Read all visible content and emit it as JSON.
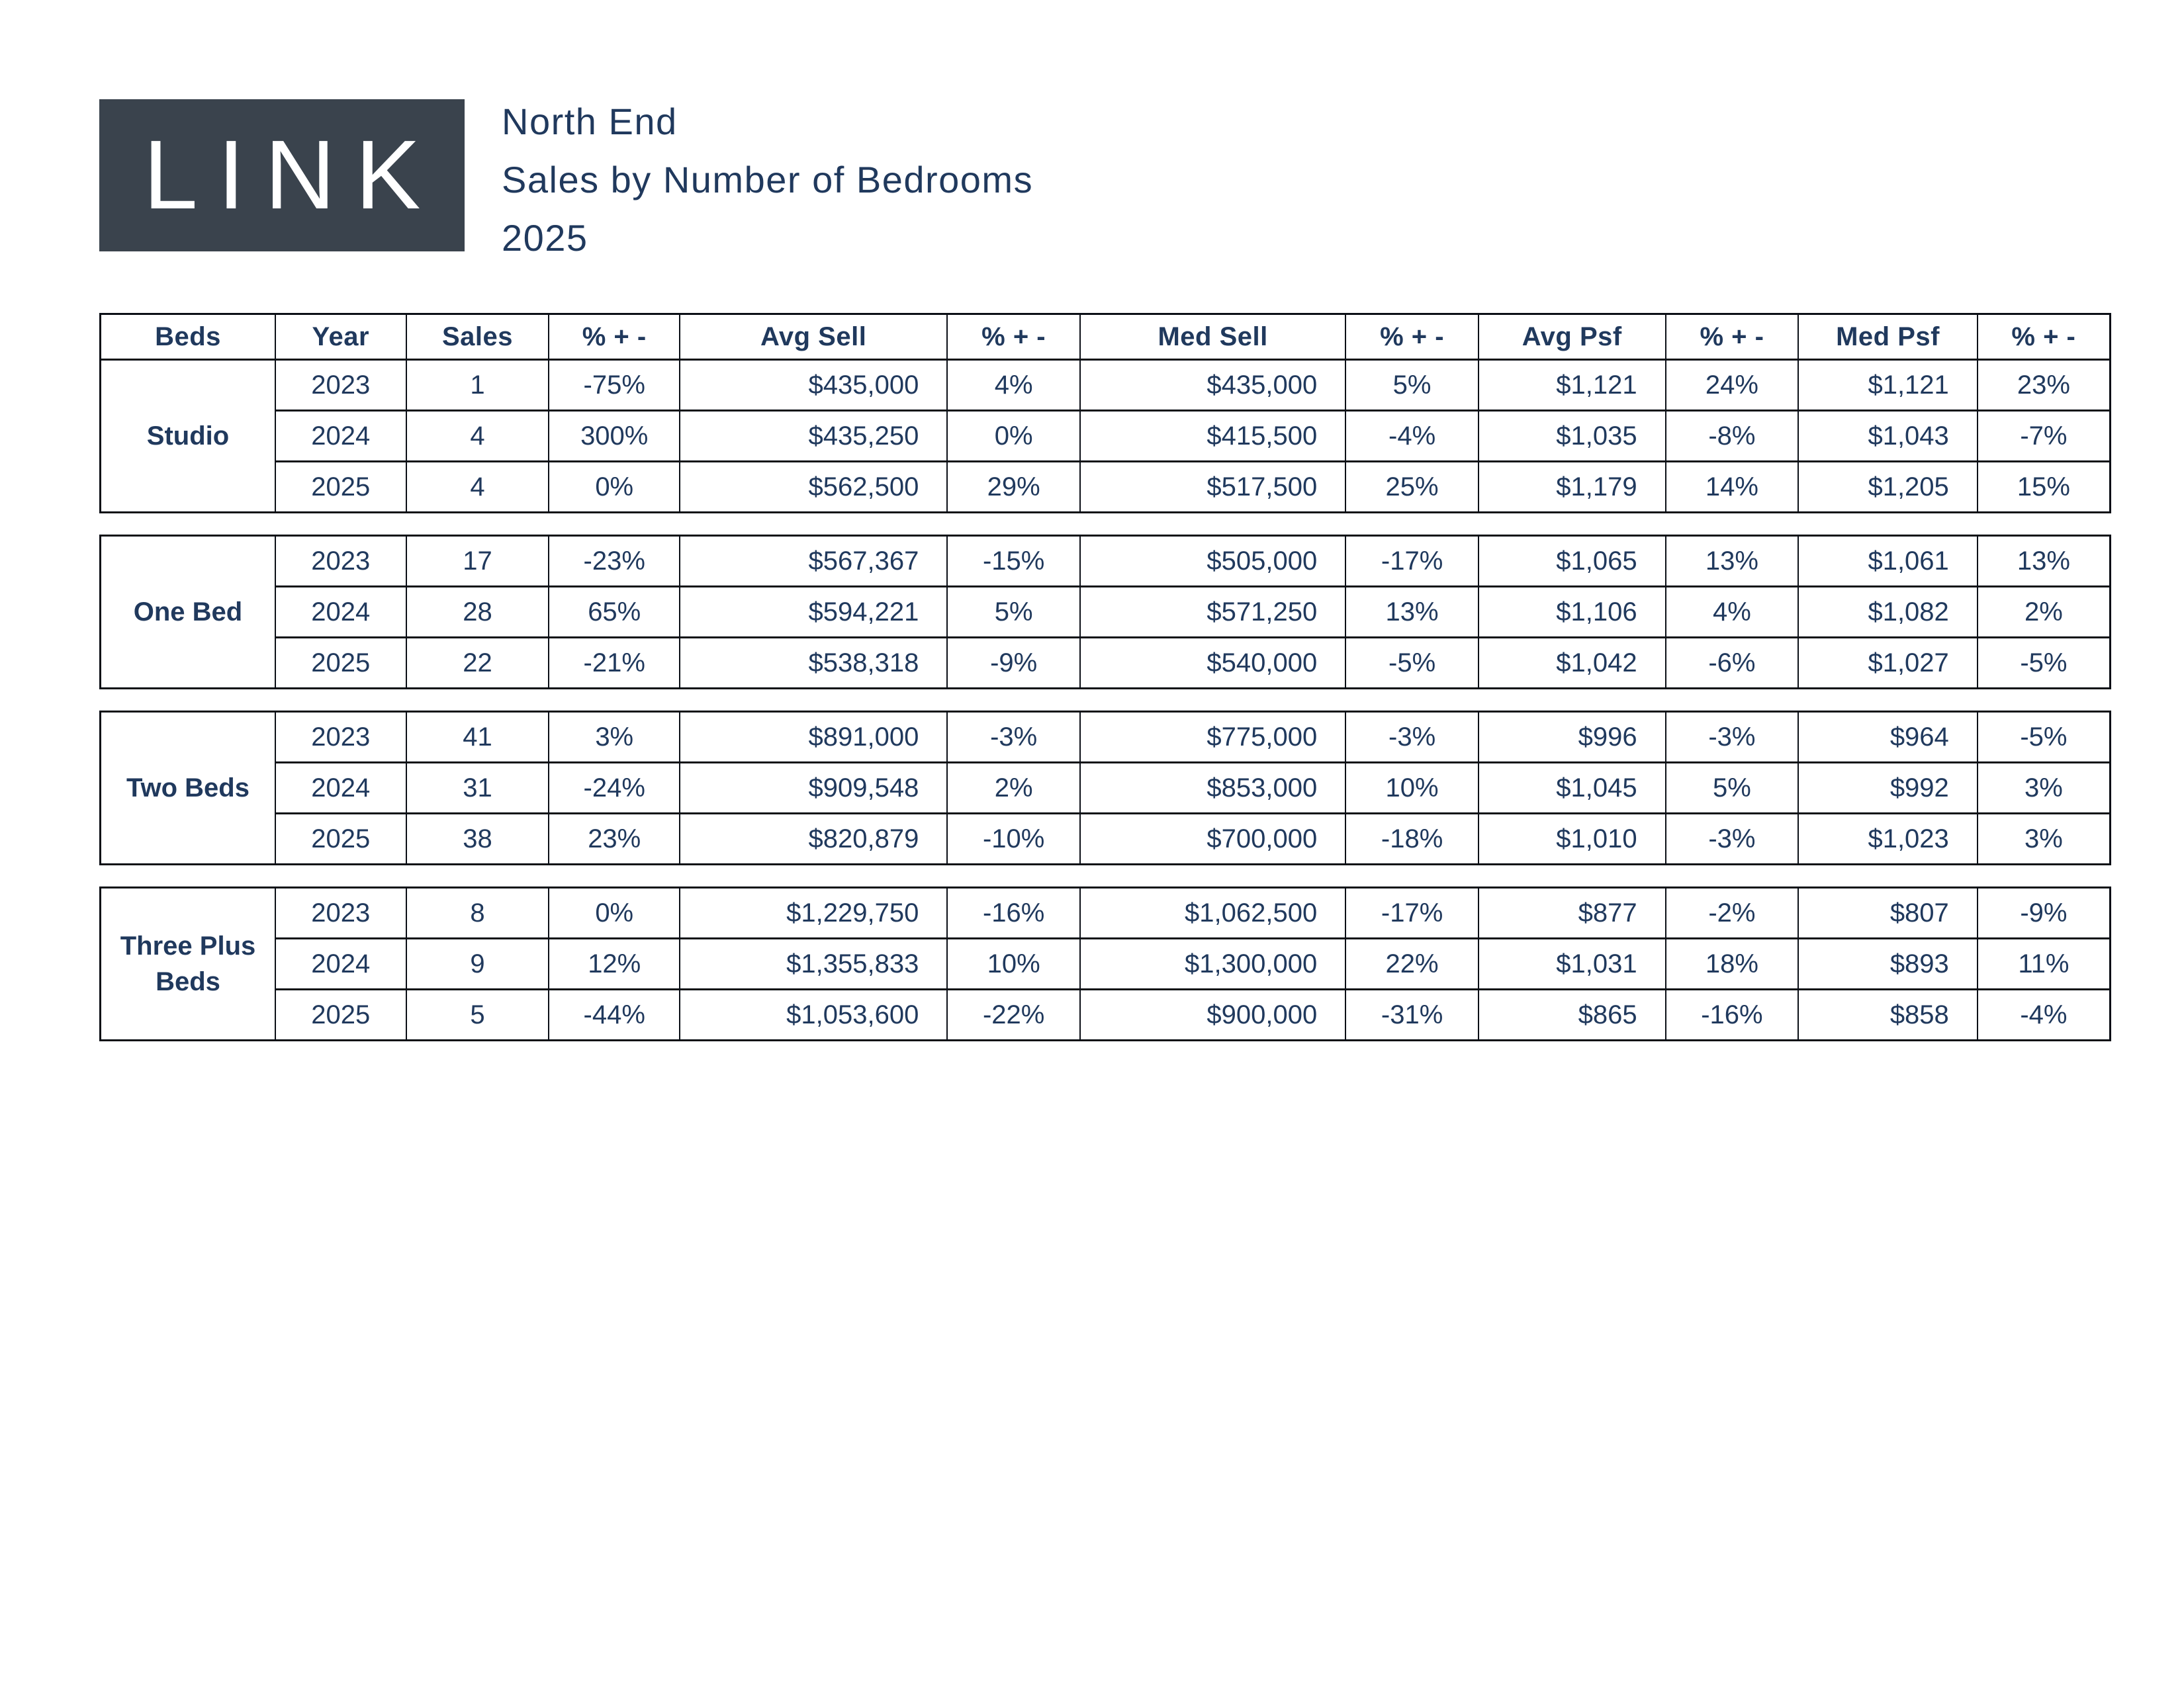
{
  "header": {
    "logo_text": "LINK",
    "title_line1": "North End",
    "title_line2": "Sales by Number of Bedrooms",
    "title_line3": "2025"
  },
  "colors": {
    "navy": "#20395D",
    "slate": "#3A434D",
    "line": "#0B0F16",
    "paper": "#FFFFFF"
  },
  "table": {
    "columns": [
      "Beds",
      "Year",
      "Sales",
      "% + -",
      "Avg Sell",
      "% + -",
      "Med Sell",
      "% + -",
      "Avg Psf",
      "% + -",
      "Med Psf",
      "% + -"
    ],
    "groups": [
      {
        "label": "Studio",
        "rows": [
          [
            "2023",
            "1",
            "-75%",
            "$435,000",
            "4%",
            "$435,000",
            "5%",
            "$1,121",
            "24%",
            "$1,121",
            "23%"
          ],
          [
            "2024",
            "4",
            "300%",
            "$435,250",
            "0%",
            "$415,500",
            "-4%",
            "$1,035",
            "-8%",
            "$1,043",
            "-7%"
          ],
          [
            "2025",
            "4",
            "0%",
            "$562,500",
            "29%",
            "$517,500",
            "25%",
            "$1,179",
            "14%",
            "$1,205",
            "15%"
          ]
        ]
      },
      {
        "label": "One Bed",
        "rows": [
          [
            "2023",
            "17",
            "-23%",
            "$567,367",
            "-15%",
            "$505,000",
            "-17%",
            "$1,065",
            "13%",
            "$1,061",
            "13%"
          ],
          [
            "2024",
            "28",
            "65%",
            "$594,221",
            "5%",
            "$571,250",
            "13%",
            "$1,106",
            "4%",
            "$1,082",
            "2%"
          ],
          [
            "2025",
            "22",
            "-21%",
            "$538,318",
            "-9%",
            "$540,000",
            "-5%",
            "$1,042",
            "-6%",
            "$1,027",
            "-5%"
          ]
        ]
      },
      {
        "label": "Two Beds",
        "rows": [
          [
            "2023",
            "41",
            "3%",
            "$891,000",
            "-3%",
            "$775,000",
            "-3%",
            "$996",
            "-3%",
            "$964",
            "-5%"
          ],
          [
            "2024",
            "31",
            "-24%",
            "$909,548",
            "2%",
            "$853,000",
            "10%",
            "$1,045",
            "5%",
            "$992",
            "3%"
          ],
          [
            "2025",
            "38",
            "23%",
            "$820,879",
            "-10%",
            "$700,000",
            "-18%",
            "$1,010",
            "-3%",
            "$1,023",
            "3%"
          ]
        ]
      },
      {
        "label": "Three Plus Beds",
        "rows": [
          [
            "2023",
            "8",
            "0%",
            "$1,229,750",
            "-16%",
            "$1,062,500",
            "-17%",
            "$877",
            "-2%",
            "$807",
            "-9%"
          ],
          [
            "2024",
            "9",
            "12%",
            "$1,355,833",
            "10%",
            "$1,300,000",
            "22%",
            "$1,031",
            "18%",
            "$893",
            "11%"
          ],
          [
            "2025",
            "5",
            "-44%",
            "$1,053,600",
            "-22%",
            "$900,000",
            "-31%",
            "$865",
            "-16%",
            "$858",
            "-4%"
          ]
        ]
      }
    ]
  }
}
